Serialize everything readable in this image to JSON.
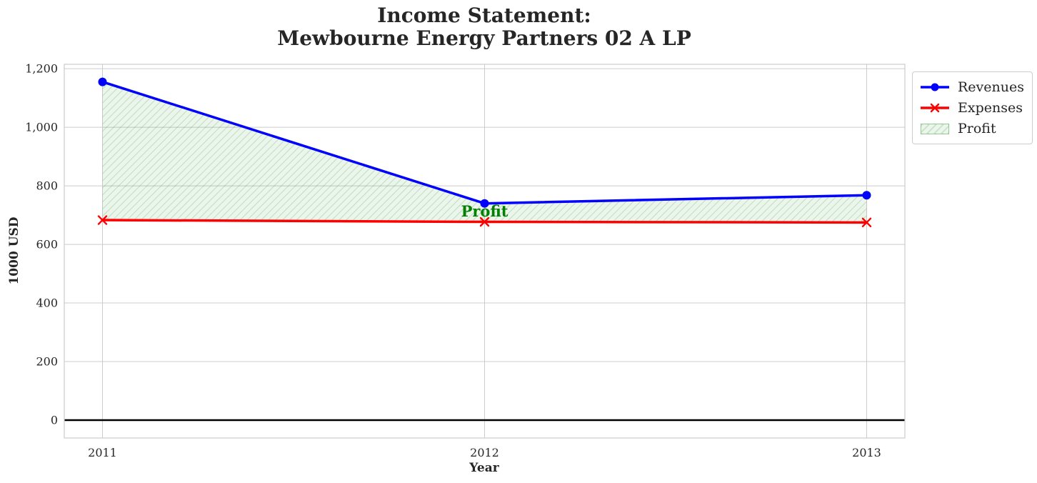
{
  "title": {
    "line1": "Income Statement:",
    "line2": "Mewbourne Energy Partners 02 A LP"
  },
  "chart_data": {
    "type": "line",
    "title": "Income Statement:\nMewbourne Energy Partners 02 A LP",
    "xlabel": "Year",
    "ylabel": "1000 USD",
    "x": [
      2011,
      2012,
      2013
    ],
    "categories": [
      "2011",
      "2012",
      "2013"
    ],
    "series": [
      {
        "name": "Revenues",
        "color": "#0000ff",
        "marker": "circle",
        "values": [
          1155,
          740,
          768
        ]
      },
      {
        "name": "Expenses",
        "color": "#ff0000",
        "marker": "x",
        "values": [
          683,
          677,
          675
        ]
      }
    ],
    "fill_between": {
      "name": "Profit",
      "between": [
        "Revenues",
        "Expenses"
      ],
      "fill_color": "rgba(0,128,0,0.08)",
      "hatch_color": "rgba(0,128,0,0.22)",
      "hatch": "//"
    },
    "annotation": {
      "text": "Profit",
      "x": 2012,
      "y": 695,
      "color": "#008000"
    },
    "yticks": [
      0,
      200,
      400,
      600,
      800,
      1000,
      1200
    ],
    "ytick_labels": [
      "0",
      "200",
      "400",
      "600",
      "800",
      "1,000",
      "1,200"
    ],
    "xlim": [
      2010.9,
      2013.1
    ],
    "ylim": [
      -61,
      1215
    ],
    "zero_line": {
      "show": true,
      "color": "#000000"
    },
    "grid": true,
    "legend": {
      "position": "upper right outside",
      "items": [
        "Revenues",
        "Expenses",
        "Profit"
      ]
    }
  },
  "colors": {
    "grid": "#cccccc",
    "spine": "#cccccc",
    "text": "#262626",
    "background": "#ffffff"
  }
}
